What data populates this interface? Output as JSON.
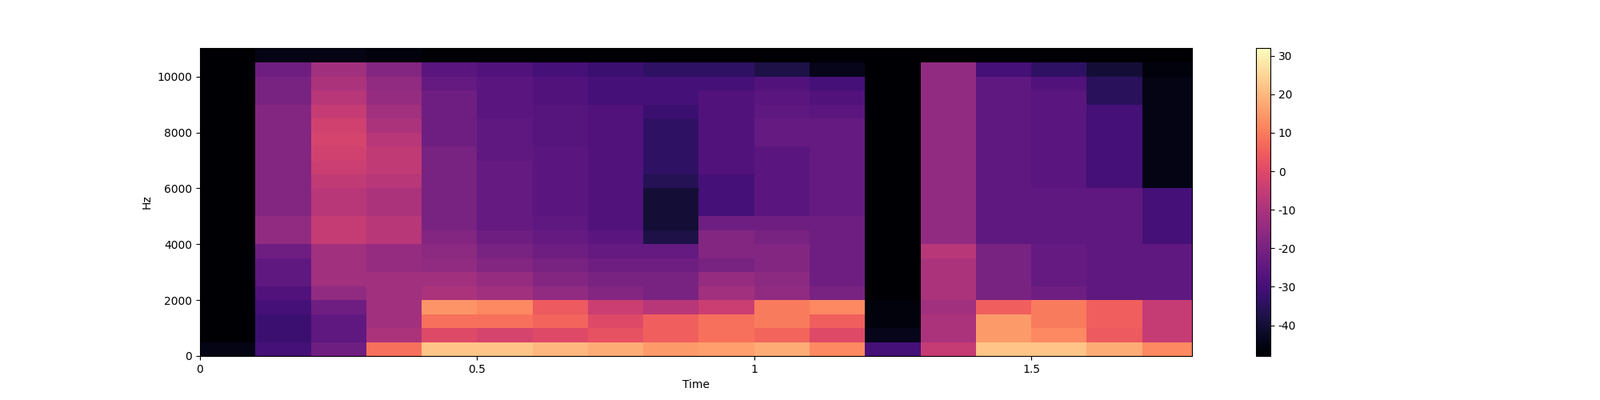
{
  "chart_data": {
    "type": "heatmap",
    "x_label": "Time",
    "y_label": "Hz",
    "color": "magma",
    "xlim": [
      0,
      1.79
    ],
    "xticks": [
      0,
      0.5,
      1,
      1.5
    ],
    "ylim": [
      0,
      11025
    ],
    "yticks": [
      0,
      2000,
      4000,
      6000,
      8000,
      10000
    ],
    "x_edges": [
      0,
      0.1,
      0.2,
      0.3,
      0.4,
      0.5,
      0.6,
      0.7,
      0.8,
      0.9,
      1.0,
      1.1,
      1.2,
      1.3,
      1.4,
      1.5,
      1.6,
      1.7,
      1.8
    ],
    "y_edges": [
      0,
      500,
      1000,
      1500,
      2000,
      2500,
      3000,
      3500,
      4000,
      4500,
      5000,
      5500,
      6000,
      6500,
      7000,
      7500,
      8000,
      8500,
      9000,
      9500,
      10000,
      10500,
      11025
    ],
    "cells": [
      [
        -45,
        -48,
        -48,
        -48,
        -48,
        -48,
        -48,
        -48,
        -48,
        -48,
        -48,
        -48,
        -48,
        -48,
        -48,
        -48,
        -48,
        -48,
        -48,
        -48,
        -48,
        -48
      ],
      [
        -30,
        -32,
        -32,
        -30,
        -28,
        -25,
        -25,
        -22,
        -15,
        -15,
        -18,
        -18,
        -18,
        -18,
        -18,
        -18,
        -18,
        -18,
        -20,
        -20,
        -22,
        -45
      ],
      [
        -22,
        -25,
        -25,
        -22,
        -15,
        -12,
        -12,
        -12,
        -5,
        -5,
        -8,
        -8,
        -6,
        -4,
        -3,
        -2,
        -3,
        -5,
        -8,
        -10,
        -12,
        -45
      ],
      [
        8,
        -10,
        -12,
        -12,
        -12,
        -12,
        -14,
        -14,
        -8,
        -8,
        -10,
        -10,
        -8,
        -6,
        -6,
        -8,
        -10,
        -12,
        -14,
        -15,
        -18,
        -46
      ],
      [
        22,
        0,
        8,
        14,
        -10,
        -12,
        -15,
        -16,
        -18,
        -20,
        -20,
        -20,
        -20,
        -20,
        -20,
        -22,
        -22,
        -22,
        -22,
        -24,
        -26,
        -48
      ],
      [
        22,
        -2,
        8,
        12,
        -12,
        -14,
        -18,
        -20,
        -22,
        -24,
        -24,
        -24,
        -24,
        -24,
        -25,
        -25,
        -25,
        -26,
        -26,
        -26,
        -28,
        -48
      ],
      [
        20,
        0,
        6,
        4,
        -15,
        -18,
        -20,
        -22,
        -24,
        -25,
        -26,
        -26,
        -26,
        -26,
        -26,
        -27,
        -27,
        -27,
        -28,
        -28,
        -30,
        -48
      ],
      [
        18,
        2,
        0,
        -4,
        -18,
        -20,
        -22,
        -24,
        -26,
        -28,
        -28,
        -28,
        -28,
        -28,
        -28,
        -28,
        -28,
        -28,
        -30,
        -30,
        -32,
        -48
      ],
      [
        15,
        5,
        5,
        -8,
        -20,
        -20,
        -22,
        -24,
        -38,
        -40,
        -40,
        -40,
        -36,
        -34,
        -34,
        -34,
        -34,
        -32,
        -30,
        -30,
        -34,
        -48
      ],
      [
        16,
        8,
        8,
        -4,
        -12,
        -14,
        -20,
        -18,
        -18,
        -22,
        -30,
        -30,
        -30,
        -28,
        -28,
        -28,
        -28,
        -28,
        -28,
        -30,
        -34,
        -48
      ],
      [
        18,
        6,
        10,
        10,
        -15,
        -16,
        -18,
        -18,
        -20,
        -22,
        -26,
        -26,
        -26,
        -26,
        -26,
        -24,
        -24,
        -25,
        -26,
        -28,
        -38,
        -48
      ],
      [
        12,
        0,
        5,
        12,
        -20,
        -22,
        -22,
        -22,
        -22,
        -22,
        -24,
        -24,
        -24,
        -24,
        -24,
        -24,
        -24,
        -26,
        -28,
        -30,
        -44,
        -48
      ],
      [
        -30,
        -44,
        -46,
        -46,
        -48,
        -48,
        -48,
        -48,
        -48,
        -48,
        -48,
        -48,
        -48,
        -48,
        -48,
        -48,
        -48,
        -48,
        -48,
        -48,
        -48,
        -48
      ],
      [
        -5,
        -10,
        -10,
        -12,
        -10,
        -10,
        -10,
        -8,
        -15,
        -15,
        -15,
        -15,
        -15,
        -15,
        -15,
        -15,
        -15,
        -15,
        -15,
        -15,
        -15,
        -48
      ],
      [
        22,
        15,
        15,
        5,
        -20,
        -20,
        -20,
        -20,
        -25,
        -25,
        -25,
        -25,
        -25,
        -25,
        -25,
        -25,
        -25,
        -25,
        -25,
        -25,
        -30,
        -48
      ],
      [
        22,
        12,
        10,
        10,
        -22,
        -24,
        -24,
        -24,
        -25,
        -25,
        -25,
        -25,
        -26,
        -26,
        -26,
        -26,
        -26,
        -26,
        -26,
        -28,
        -34,
        -48
      ],
      [
        18,
        4,
        5,
        5,
        -25,
        -25,
        -25,
        -25,
        -25,
        -25,
        -25,
        -25,
        -30,
        -30,
        -30,
        -30,
        -30,
        -30,
        -35,
        -35,
        -40,
        -48
      ],
      [
        12,
        -5,
        -5,
        -5,
        -25,
        -25,
        -25,
        -25,
        -30,
        -30,
        -30,
        -30,
        -45,
        -45,
        -45,
        -45,
        -45,
        -45,
        -45,
        -45,
        -46,
        -48
      ]
    ],
    "colorbar_range": [
      -48,
      32
    ],
    "colorbar_ticks": [
      -40,
      -30,
      -20,
      -10,
      0,
      10,
      20,
      30
    ]
  }
}
